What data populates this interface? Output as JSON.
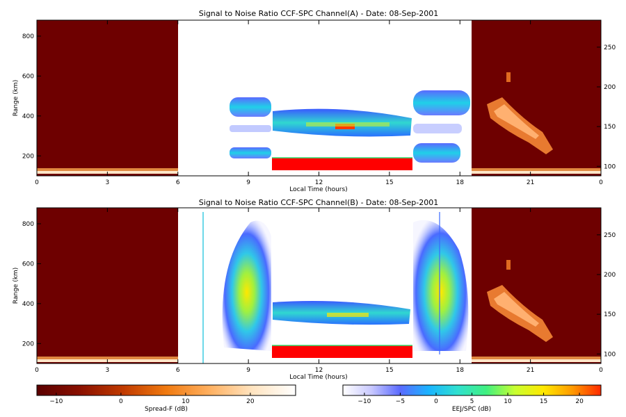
{
  "figure": {
    "colorbar_left": {
      "label": "Spread-F (dB)",
      "ticks": [
        -10,
        0,
        10,
        20
      ],
      "range": [
        -13,
        27
      ],
      "colors": [
        "#5a0000",
        "#8a1000",
        "#c03a00",
        "#f07a10",
        "#ffb060",
        "#ffe4c0",
        "#ffffff"
      ]
    },
    "colorbar_right": {
      "label": "EEJ/SPC (dB)",
      "ticks": [
        -10,
        -5,
        0,
        5,
        10,
        15,
        20
      ],
      "range": [
        -13,
        23
      ],
      "colors": [
        "#ffffff",
        "#c8c8ff",
        "#5a6aff",
        "#1ab4ff",
        "#30e0d0",
        "#40f080",
        "#c8ff30",
        "#ffe800",
        "#ff9a00",
        "#ff2a00"
      ]
    }
  },
  "chart_data": [
    {
      "type": "heatmap",
      "title": "Signal to Noise Ratio CCF-SPC Channel(A) - Date: 08-Sep-2001",
      "xlabel": "Local Time (hours)",
      "ylabel": "Range (km)",
      "x_ticks": [
        "0",
        "3",
        "6",
        "9",
        "12",
        "15",
        "18",
        "21",
        "0"
      ],
      "xlim": [
        0,
        24
      ],
      "y_ticks": [
        200,
        400,
        600,
        800
      ],
      "ylim": [
        100,
        880
      ],
      "y2_ticks": [
        100,
        150,
        200,
        250
      ],
      "y2lim": [
        88,
        284
      ],
      "regions": [
        {
          "name": "night-spreadF",
          "x": [
            0,
            6
          ],
          "scale": "Spread-F (dB)"
        },
        {
          "name": "day-EEJ",
          "x": [
            6,
            18.5
          ],
          "scale": "EEJ/SPC (dB)"
        },
        {
          "name": "night-spreadF",
          "x": [
            18.5,
            24
          ],
          "scale": "Spread-F (dB)"
        }
      ],
      "features": [
        {
          "desc": "F-layer echoes",
          "x": [
            8.2,
            10
          ],
          "y": [
            430,
            480
          ],
          "snr_db": 0
        },
        {
          "desc": "F-layer echoes",
          "x": [
            16,
            18
          ],
          "y": [
            420,
            500
          ],
          "snr_db": 2
        },
        {
          "desc": "150 km echoes",
          "x": [
            10,
            16
          ],
          "y": [
            310,
            420
          ],
          "snr_db": 8
        },
        {
          "desc": "EEJ",
          "x": [
            10,
            16
          ],
          "y": [
            130,
            190
          ],
          "snr_db": 22
        },
        {
          "desc": "plume",
          "x": [
            20.2,
            21.8
          ],
          "y": [
            220,
            620
          ],
          "snr_db": 15
        }
      ]
    },
    {
      "type": "heatmap",
      "title": "Signal to Noise Ratio CCF-SPC Channel(B) - Date: 08-Sep-2001",
      "xlabel": "Local Time (hours)",
      "ylabel": "Range (km)",
      "x_ticks": [
        "0",
        "3",
        "6",
        "9",
        "12",
        "15",
        "18",
        "21",
        "0"
      ],
      "xlim": [
        0,
        24
      ],
      "y_ticks": [
        200,
        400,
        600,
        800
      ],
      "ylim": [
        100,
        880
      ],
      "y2_ticks": [
        100,
        150,
        200,
        250
      ],
      "y2lim": [
        88,
        284
      ],
      "regions": [
        {
          "name": "night-spreadF",
          "x": [
            0,
            6
          ],
          "scale": "Spread-F (dB)"
        },
        {
          "name": "day-EEJ",
          "x": [
            6,
            18.5
          ],
          "scale": "EEJ/SPC (dB)"
        },
        {
          "name": "night-spreadF",
          "x": [
            18.5,
            24
          ],
          "scale": "Spread-F (dB)"
        }
      ],
      "features": [
        {
          "desc": "plume",
          "x": [
            8,
            10
          ],
          "y": [
            180,
            680
          ],
          "snr_db": 3
        },
        {
          "desc": "plume",
          "x": [
            16,
            18.3
          ],
          "y": [
            170,
            720
          ],
          "snr_db": 5
        },
        {
          "desc": "150 km echoes",
          "x": [
            10,
            16
          ],
          "y": [
            320,
            420
          ],
          "snr_db": 6
        },
        {
          "desc": "EEJ",
          "x": [
            10,
            16
          ],
          "y": [
            130,
            190
          ],
          "snr_db": 22
        },
        {
          "desc": "plume",
          "x": [
            20.2,
            21.8
          ],
          "y": [
            220,
            620
          ],
          "snr_db": 15
        }
      ]
    }
  ]
}
